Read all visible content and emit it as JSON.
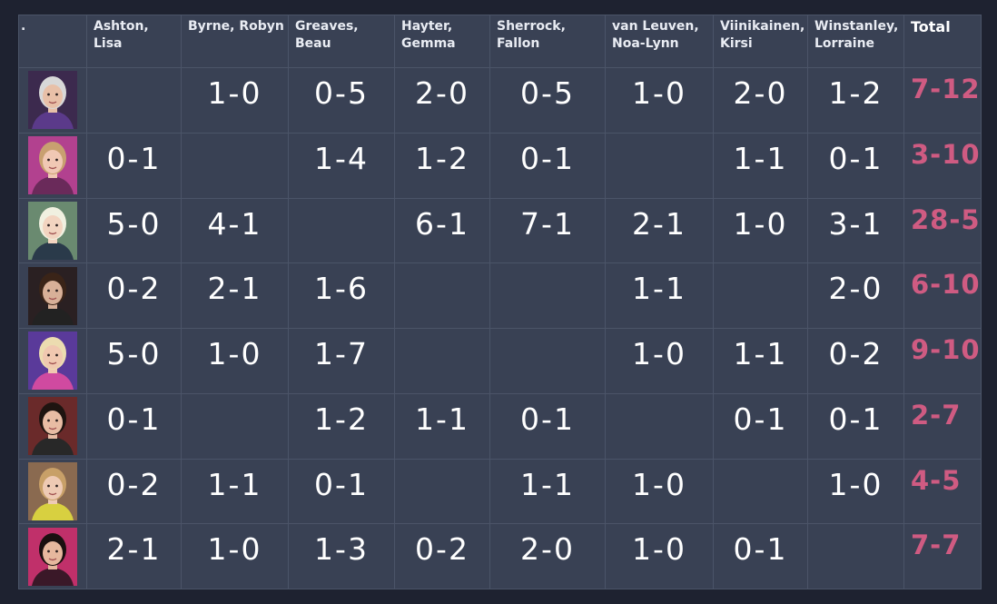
{
  "corner_label": ".",
  "columns": [
    "Ashton,\nLisa",
    "Byrne, Robyn",
    "Greaves,\nBeau",
    "Hayter,\nGemma",
    "Sherrock,\nFallon",
    "van Leuven,\nNoa-Lynn",
    "Viinikainen,\nKirsi",
    "Winstanley,\nLorraine",
    "Total"
  ],
  "rows": [
    {
      "photo": "player-photo",
      "cells": [
        "",
        "1-0",
        "0-5",
        "2-0",
        "0-5",
        "1-0",
        "2-0",
        "1-2"
      ],
      "total": "7-12"
    },
    {
      "photo": "player-photo",
      "cells": [
        "0-1",
        "",
        "1-4",
        "1-2",
        "0-1",
        "",
        "1-1",
        "0-1"
      ],
      "total": "3-10"
    },
    {
      "photo": "player-photo",
      "cells": [
        "5-0",
        "4-1",
        "",
        "6-1",
        "7-1",
        "2-1",
        "1-0",
        "3-1"
      ],
      "total": "28-5"
    },
    {
      "photo": "player-photo",
      "cells": [
        "0-2",
        "2-1",
        "1-6",
        "",
        "",
        "1-1",
        "",
        "2-0"
      ],
      "total": "6-10"
    },
    {
      "photo": "player-photo",
      "cells": [
        "5-0",
        "1-0",
        "1-7",
        "",
        "",
        "1-0",
        "1-1",
        "0-2"
      ],
      "total": "9-10"
    },
    {
      "photo": "player-photo",
      "cells": [
        "0-1",
        "",
        "1-2",
        "1-1",
        "0-1",
        "",
        "0-1",
        "0-1"
      ],
      "total": "2-7"
    },
    {
      "photo": "player-photo",
      "cells": [
        "0-2",
        "1-1",
        "0-1",
        "",
        "1-1",
        "1-0",
        "",
        "1-0"
      ],
      "total": "4-5"
    },
    {
      "photo": "player-photo",
      "cells": [
        "2-1",
        "1-0",
        "1-3",
        "0-2",
        "2-0",
        "1-0",
        "0-1",
        ""
      ],
      "total": "7-7"
    }
  ],
  "colors": {
    "background": "#1e2230",
    "table": "#394154",
    "grid": "#4b5468",
    "total_accent": "#cf5b82"
  },
  "avatars": [
    {
      "bg": "#3c2a4e",
      "skin": "#e8c0a8",
      "hair": "#d8d8d8",
      "top": "#5b3a8a"
    },
    {
      "bg": "#b2418f",
      "skin": "#f0c8b4",
      "hair": "#c8a070",
      "top": "#6a2a5a"
    },
    {
      "bg": "#6a8a70",
      "skin": "#f2d4c0",
      "hair": "#f0f0e0",
      "top": "#2a3a4a"
    },
    {
      "bg": "#2a2022",
      "skin": "#d8b098",
      "hair": "#3a2418",
      "top": "#222222"
    },
    {
      "bg": "#5a3a9a",
      "skin": "#f0c8b0",
      "hair": "#ecdcb0",
      "top": "#d04aa0"
    },
    {
      "bg": "#6a2a2a",
      "skin": "#e8bca4",
      "hair": "#1e1410",
      "top": "#282828"
    },
    {
      "bg": "#8a6a50",
      "skin": "#eecab4",
      "hair": "#c8a068",
      "top": "#d8d040"
    },
    {
      "bg": "#c0306a",
      "skin": "#e6b89e",
      "hair": "#1a1010",
      "top": "#3a1828"
    }
  ]
}
